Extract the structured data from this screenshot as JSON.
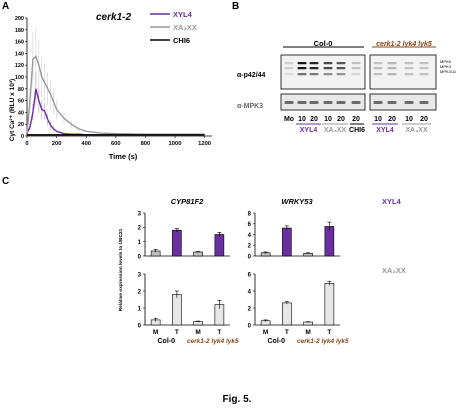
{
  "panels": {
    "a": {
      "letter": "A"
    },
    "b": {
      "letter": "B"
    },
    "c": {
      "letter": "C"
    }
  },
  "panel_a": {
    "title": "cerk1-2",
    "ylabel": "Cyt Ca²⁺ (RLU x 10³)",
    "xlabel": "Time (s)",
    "legend": [
      {
        "label": "XYL4",
        "color": "#6a2fa0"
      },
      {
        "label": "XA₃XX",
        "color": "#999999"
      },
      {
        "label": "CHI6",
        "color": "#000000"
      }
    ]
  },
  "panel_b": {
    "group_col0": "Col-0",
    "group_mut": "cerk1-2 lyk4 lyk5",
    "row1_label": "α-p42/44",
    "row2_label": "α-MPK3",
    "mapk_labels": [
      "MPK6",
      "MPK3",
      "MPK4/11"
    ],
    "lanes_col0": [
      "Mo",
      "10",
      "20",
      "10",
      "20",
      "20"
    ],
    "lanes_mut": [
      "10",
      "20",
      "10",
      "20"
    ],
    "treatments_col0": [
      {
        "label": "XYL4",
        "color": "#6a2fa0"
      },
      {
        "label": "XA₃XX",
        "color": "#999999"
      },
      {
        "label": "CHI6",
        "color": "#000000"
      }
    ],
    "treatments_mut": [
      {
        "label": "XYL4",
        "color": "#6a2fa0"
      },
      {
        "label": "XA₃XX",
        "color": "#999999"
      }
    ]
  },
  "panel_c": {
    "ylabel": "Relative expression levels to UBC21",
    "gene_left": "CYP81F2",
    "gene_right": "WRKY53",
    "label_top": "XYL4",
    "label_bottom": "XA₃XX",
    "xcats": [
      "M",
      "T",
      "M",
      "T"
    ],
    "group_col0": "Col-0",
    "group_mut": "cerk1-2 lyk4 lyk5",
    "mut_color": "#8b4513",
    "xyl_color": "#6a2fa0"
  },
  "caption": "Fig. 5.",
  "chart_data": [
    {
      "type": "line",
      "title": "cerk1-2",
      "xlabel": "Time (s)",
      "ylabel": "Cyt Ca²⁺ (RLU x 10³)",
      "xlim": [
        0,
        1250
      ],
      "ylim": [
        0,
        200
      ],
      "xticks": [
        0,
        200,
        400,
        600,
        800,
        1000,
        1200
      ],
      "yticks": [
        0,
        20,
        40,
        60,
        80,
        100,
        120,
        140,
        160,
        180,
        200
      ],
      "series": [
        {
          "name": "XYL4",
          "color": "#6a2fa0",
          "x": [
            0,
            20,
            40,
            60,
            80,
            100,
            120,
            140,
            160,
            180,
            200,
            250,
            300,
            350,
            400,
            500,
            600,
            800,
            1000,
            1200
          ],
          "y": [
            5,
            15,
            40,
            80,
            60,
            45,
            42,
            28,
            18,
            12,
            8,
            4,
            3,
            3,
            2,
            2,
            2,
            2,
            2,
            2
          ]
        },
        {
          "name": "XA₃XX",
          "color": "#999999",
          "x": [
            0,
            20,
            40,
            60,
            80,
            100,
            120,
            140,
            160,
            180,
            200,
            250,
            300,
            350,
            400,
            500,
            600,
            800,
            1000,
            1200
          ],
          "y": [
            5,
            60,
            130,
            135,
            120,
            100,
            90,
            80,
            70,
            58,
            45,
            30,
            20,
            12,
            8,
            5,
            4,
            3,
            3,
            3
          ]
        },
        {
          "name": "CHI6",
          "color": "#000000",
          "x": [
            0,
            100,
            200,
            400,
            600,
            800,
            1000,
            1200
          ],
          "y": [
            2,
            2,
            2,
            2,
            2,
            2,
            2,
            2
          ]
        }
      ]
    },
    {
      "type": "bar",
      "title": "CYP81F2",
      "categories": [
        "M",
        "T",
        "M",
        "T"
      ],
      "ylim": [
        0,
        3
      ],
      "yticks": [
        0,
        1,
        2,
        3
      ],
      "series": [
        {
          "name": "XYL4",
          "values": [
            0.35,
            1.8,
            0.28,
            1.5
          ],
          "errors": [
            0.1,
            0.12,
            0.04,
            0.15
          ]
        }
      ]
    },
    {
      "type": "bar",
      "title": "WRKY53",
      "categories": [
        "M",
        "T",
        "M",
        "T"
      ],
      "ylim": [
        0,
        8
      ],
      "yticks": [
        0,
        2,
        4,
        6,
        8
      ],
      "series": [
        {
          "name": "XYL4",
          "values": [
            0.6,
            5.2,
            0.5,
            5.5
          ],
          "errors": [
            0.15,
            0.4,
            0.1,
            0.8
          ]
        }
      ]
    },
    {
      "type": "bar",
      "categories": [
        "M",
        "T",
        "M",
        "T"
      ],
      "ylim": [
        0,
        3
      ],
      "yticks": [
        0,
        1,
        2,
        3
      ],
      "series": [
        {
          "name": "XA₃XX",
          "values": [
            0.3,
            1.8,
            0.2,
            1.2
          ],
          "errors": [
            0.1,
            0.2,
            0.03,
            0.25
          ]
        }
      ]
    },
    {
      "type": "bar",
      "categories": [
        "M",
        "T",
        "M",
        "T"
      ],
      "ylim": [
        0,
        6
      ],
      "yticks": [
        0,
        2,
        4,
        6
      ],
      "series": [
        {
          "name": "XA₃XX",
          "values": [
            0.5,
            2.6,
            0.35,
            4.9
          ],
          "errors": [
            0.1,
            0.15,
            0.05,
            0.25
          ]
        }
      ]
    }
  ]
}
